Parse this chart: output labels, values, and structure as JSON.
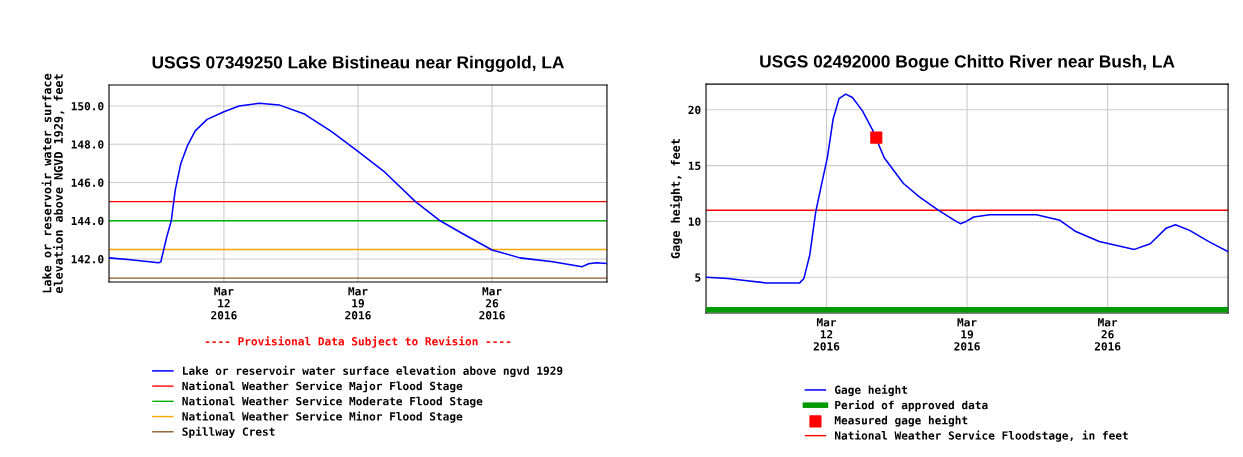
{
  "chart_data": [
    {
      "type": "line",
      "title": "USGS 07349250 Lake Bistineau near Ringgold, LA",
      "ylabel": "Lake or reservoir water surface\nelevation above NGVD 1929, feet",
      "annotations": [
        "---- Provisional Data Subject to Revision ----"
      ],
      "x": [
        "2016-03-06T00:00",
        "2016-03-07T03:00",
        "2016-03-08T14:00",
        "2016-03-08T17:00",
        "2016-03-09T00:00",
        "2016-03-09T06:00",
        "2016-03-09T11:00",
        "2016-03-09T18:00",
        "2016-03-10T02:00",
        "2016-03-10T12:00",
        "2016-03-11T03:00",
        "2016-03-12T00:00",
        "2016-03-12T19:00",
        "2016-03-13T20:00",
        "2016-03-14T21:00",
        "2016-03-16T04:00",
        "2016-03-17T15:00",
        "2016-03-19T00:00",
        "2016-03-20T08:00",
        "2016-03-22T00:00",
        "2016-03-23T07:00",
        "2016-03-24T08:00",
        "2016-03-26T00:00",
        "2016-03-27T11:00",
        "2016-03-29T04:00",
        "2016-03-30T17:00",
        "2016-03-31T01:00",
        "2016-03-31T11:00",
        "2016-04-01T00:00"
      ],
      "series": [
        {
          "name": "Lake or reservoir water surface elevation above ngvd 1929",
          "color": "#0000ff",
          "values": [
            142.06,
            141.96,
            141.8,
            141.86,
            143.1,
            144.0,
            145.6,
            147.0,
            147.9,
            148.7,
            149.3,
            149.7,
            150.0,
            150.14,
            150.06,
            149.6,
            148.66,
            147.63,
            146.6,
            145.0,
            144.0,
            143.4,
            142.47,
            142.06,
            141.86,
            141.6,
            141.75,
            141.81,
            141.77
          ]
        }
      ],
      "ref_lines": [
        {
          "axis": "y",
          "value": 145,
          "label": "National Weather Service Major Flood Stage",
          "color": "#ff0000"
        },
        {
          "axis": "y",
          "value": 144,
          "label": "National Weather Service Moderate Flood Stage",
          "color": "#00b000"
        },
        {
          "axis": "y",
          "value": 142.5,
          "label": "National Weather Service Minor Flood Stage",
          "color": "#ffa500"
        },
        {
          "axis": "y",
          "value": 141,
          "label": "Spillway Crest",
          "color": "#8b5a2b"
        }
      ],
      "xlim": [
        "2016-03-06T00:00",
        "2016-04-01T00:00"
      ],
      "xticks": [
        {
          "value": "2016-03-12",
          "label": "Mar\n12\n2016"
        },
        {
          "value": "2016-03-19",
          "label": "Mar\n19\n2016"
        },
        {
          "value": "2016-03-26",
          "label": "Mar\n26\n2016"
        }
      ],
      "ylim": [
        140.8,
        151.1
      ],
      "yticks": [
        {
          "value": 142,
          "label": "142.0"
        },
        {
          "value": 144,
          "label": "144.0"
        },
        {
          "value": 146,
          "label": "146.0"
        },
        {
          "value": 148,
          "label": "148.0"
        },
        {
          "value": 150,
          "label": "150.0"
        }
      ],
      "grid": true,
      "legend": "bottom"
    },
    {
      "type": "line",
      "title": "USGS 02492000 Bogue Chitto River near Bush, LA",
      "ylabel": "Gage height, feet",
      "series": [
        {
          "name": "Gage height",
          "color": "#0000ff",
          "x": [
            "2016-03-06T00:00",
            "2016-03-07T02:00",
            "2016-03-08T01:00",
            "2016-03-09T00:00",
            "2016-03-10T16:00",
            "2016-03-10T21:00",
            "2016-03-11T04:00",
            "2016-03-11T11:00",
            "2016-03-11T18:00",
            "2016-03-12T01:00",
            "2016-03-12T08:00",
            "2016-03-12T15:00",
            "2016-03-12T23:00",
            "2016-03-13T07:00",
            "2016-03-13T19:00",
            "2016-03-14T07:00",
            "2016-03-14T21:00",
            "2016-03-15T20:00",
            "2016-03-16T15:00",
            "2016-03-17T14:00",
            "2016-03-18T09:00",
            "2016-03-18T16:00",
            "2016-03-18T23:00",
            "2016-03-19T08:00",
            "2016-03-20T03:00",
            "2016-03-22T11:00",
            "2016-03-23T15:00",
            "2016-03-24T10:00",
            "2016-03-25T14:00",
            "2016-03-27T08:00",
            "2016-03-28T03:00",
            "2016-03-28T22:00",
            "2016-03-29T09:00",
            "2016-03-30T02:00",
            "2016-03-31T01:00",
            "2016-04-01T00:00"
          ],
          "values": [
            5.0,
            4.9,
            4.7,
            4.5,
            4.5,
            4.9,
            7.0,
            10.8,
            13.3,
            15.7,
            19.2,
            21.0,
            21.4,
            21.1,
            19.9,
            18.2,
            15.7,
            13.4,
            12.2,
            11.0,
            10.1,
            9.8,
            10.0,
            10.4,
            10.6,
            10.6,
            10.1,
            9.1,
            8.2,
            7.5,
            8.0,
            9.4,
            9.7,
            9.2,
            8.2,
            7.3
          ]
        },
        {
          "name": "Period of approved data",
          "color": "#009900",
          "x": [
            "2016-03-06T00:00",
            "2016-04-01T00:00"
          ],
          "values": [
            2.1,
            2.1
          ]
        },
        {
          "name": "Measured gage height",
          "type": "scatter",
          "color": "#ff0000",
          "marker": "square",
          "x": [
            "2016-03-14T11:30"
          ],
          "values": [
            17.5
          ]
        }
      ],
      "ref_lines": [
        {
          "axis": "y",
          "value": 11,
          "label": "National Weather Service Floodstage, in feet",
          "color": "#ff0000"
        }
      ],
      "xlim": [
        "2016-03-06T00:00",
        "2016-04-01T00:00"
      ],
      "xticks": [
        {
          "value": "2016-03-12",
          "label": "Mar\n12\n2016"
        },
        {
          "value": "2016-03-19",
          "label": "Mar\n19\n2016"
        },
        {
          "value": "2016-03-26",
          "label": "Mar\n26\n2016"
        }
      ],
      "ylim": [
        1.8,
        22.3
      ],
      "yticks": [
        5,
        10,
        15,
        20
      ],
      "grid": true,
      "legend": "bottom"
    }
  ]
}
